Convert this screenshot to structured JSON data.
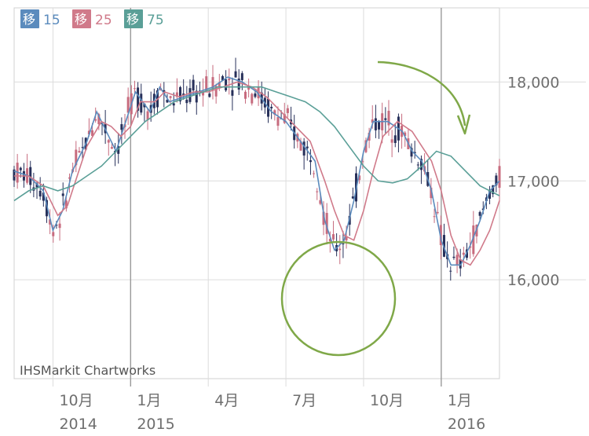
{
  "chart_data": {
    "type": "line",
    "credit": "IHSMarkit Chartworks",
    "legend": [
      {
        "badge": "移",
        "value": "15",
        "color": "#5b8bbd"
      },
      {
        "badge": "移",
        "value": "25",
        "color": "#d07a8a"
      },
      {
        "badge": "移",
        "value": "75",
        "color": "#5a9f97"
      }
    ],
    "y_ticks": [
      {
        "value": 16000,
        "label": "16,000"
      },
      {
        "value": 17000,
        "label": "17,000"
      },
      {
        "value": 18000,
        "label": "18,000"
      }
    ],
    "ylim": [
      15000,
      18750
    ],
    "x_ticks": [
      {
        "x": 0.08,
        "label": "10月",
        "year": "2014",
        "major": false
      },
      {
        "x": 0.24,
        "label": "1月",
        "year": "2015",
        "major": true
      },
      {
        "x": 0.4,
        "label": "4月",
        "year": "",
        "major": false
      },
      {
        "x": 0.56,
        "label": "7月",
        "year": "",
        "major": false
      },
      {
        "x": 0.72,
        "label": "10月",
        "year": "",
        "major": false
      },
      {
        "x": 0.88,
        "label": "1月",
        "year": "2016",
        "major": true
      }
    ],
    "xlim": [
      0,
      1
    ],
    "series": [
      {
        "name": "移 15",
        "color": "#5b8bbd",
        "values": [
          [
            0.0,
            17100
          ],
          [
            0.03,
            17050
          ],
          [
            0.06,
            16900
          ],
          [
            0.08,
            16500
          ],
          [
            0.1,
            16700
          ],
          [
            0.12,
            17100
          ],
          [
            0.15,
            17400
          ],
          [
            0.17,
            17700
          ],
          [
            0.19,
            17500
          ],
          [
            0.21,
            17300
          ],
          [
            0.23,
            17600
          ],
          [
            0.25,
            17900
          ],
          [
            0.28,
            17700
          ],
          [
            0.3,
            17950
          ],
          [
            0.32,
            17800
          ],
          [
            0.35,
            17850
          ],
          [
            0.38,
            17900
          ],
          [
            0.41,
            17950
          ],
          [
            0.44,
            18050
          ],
          [
            0.47,
            18000
          ],
          [
            0.5,
            17900
          ],
          [
            0.53,
            17700
          ],
          [
            0.56,
            17600
          ],
          [
            0.59,
            17400
          ],
          [
            0.62,
            17200
          ],
          [
            0.64,
            16600
          ],
          [
            0.66,
            16300
          ],
          [
            0.68,
            16400
          ],
          [
            0.7,
            16800
          ],
          [
            0.72,
            17300
          ],
          [
            0.74,
            17600
          ],
          [
            0.77,
            17600
          ],
          [
            0.8,
            17500
          ],
          [
            0.82,
            17300
          ],
          [
            0.84,
            17200
          ],
          [
            0.86,
            16900
          ],
          [
            0.88,
            16400
          ],
          [
            0.9,
            16150
          ],
          [
            0.92,
            16150
          ],
          [
            0.94,
            16350
          ],
          [
            0.96,
            16600
          ],
          [
            0.98,
            16900
          ],
          [
            1.0,
            17000
          ]
        ]
      },
      {
        "name": "移 25",
        "color": "#d07a8a",
        "values": [
          [
            0.0,
            17050
          ],
          [
            0.03,
            17050
          ],
          [
            0.06,
            16950
          ],
          [
            0.09,
            16650
          ],
          [
            0.11,
            16750
          ],
          [
            0.13,
            17050
          ],
          [
            0.15,
            17350
          ],
          [
            0.18,
            17600
          ],
          [
            0.2,
            17550
          ],
          [
            0.22,
            17450
          ],
          [
            0.24,
            17550
          ],
          [
            0.26,
            17800
          ],
          [
            0.29,
            17800
          ],
          [
            0.31,
            17900
          ],
          [
            0.34,
            17850
          ],
          [
            0.37,
            17900
          ],
          [
            0.4,
            17900
          ],
          [
            0.43,
            17950
          ],
          [
            0.46,
            18000
          ],
          [
            0.49,
            17950
          ],
          [
            0.52,
            17850
          ],
          [
            0.55,
            17700
          ],
          [
            0.58,
            17550
          ],
          [
            0.61,
            17400
          ],
          [
            0.64,
            17000
          ],
          [
            0.66,
            16700
          ],
          [
            0.68,
            16450
          ],
          [
            0.7,
            16400
          ],
          [
            0.72,
            16700
          ],
          [
            0.74,
            17100
          ],
          [
            0.76,
            17450
          ],
          [
            0.79,
            17600
          ],
          [
            0.82,
            17500
          ],
          [
            0.84,
            17350
          ],
          [
            0.86,
            17200
          ],
          [
            0.88,
            16900
          ],
          [
            0.9,
            16450
          ],
          [
            0.92,
            16200
          ],
          [
            0.94,
            16150
          ],
          [
            0.96,
            16300
          ],
          [
            0.98,
            16500
          ],
          [
            1.0,
            16800
          ]
        ]
      },
      {
        "name": "移 75",
        "color": "#5a9f97",
        "values": [
          [
            0.0,
            16800
          ],
          [
            0.03,
            16900
          ],
          [
            0.06,
            16950
          ],
          [
            0.09,
            16900
          ],
          [
            0.12,
            16950
          ],
          [
            0.15,
            17050
          ],
          [
            0.18,
            17150
          ],
          [
            0.21,
            17300
          ],
          [
            0.24,
            17450
          ],
          [
            0.27,
            17600
          ],
          [
            0.3,
            17700
          ],
          [
            0.33,
            17800
          ],
          [
            0.36,
            17850
          ],
          [
            0.39,
            17900
          ],
          [
            0.42,
            17950
          ],
          [
            0.45,
            17950
          ],
          [
            0.48,
            17950
          ],
          [
            0.51,
            17950
          ],
          [
            0.54,
            17900
          ],
          [
            0.57,
            17850
          ],
          [
            0.6,
            17800
          ],
          [
            0.63,
            17700
          ],
          [
            0.66,
            17550
          ],
          [
            0.69,
            17350
          ],
          [
            0.72,
            17150
          ],
          [
            0.75,
            17000
          ],
          [
            0.78,
            16980
          ],
          [
            0.81,
            17020
          ],
          [
            0.84,
            17150
          ],
          [
            0.87,
            17300
          ],
          [
            0.9,
            17250
          ],
          [
            0.93,
            17100
          ],
          [
            0.96,
            16950
          ],
          [
            1.0,
            16850
          ]
        ]
      }
    ],
    "annotations": [
      {
        "kind": "circle",
        "label": ""
      },
      {
        "kind": "arrow",
        "label": ""
      }
    ]
  }
}
